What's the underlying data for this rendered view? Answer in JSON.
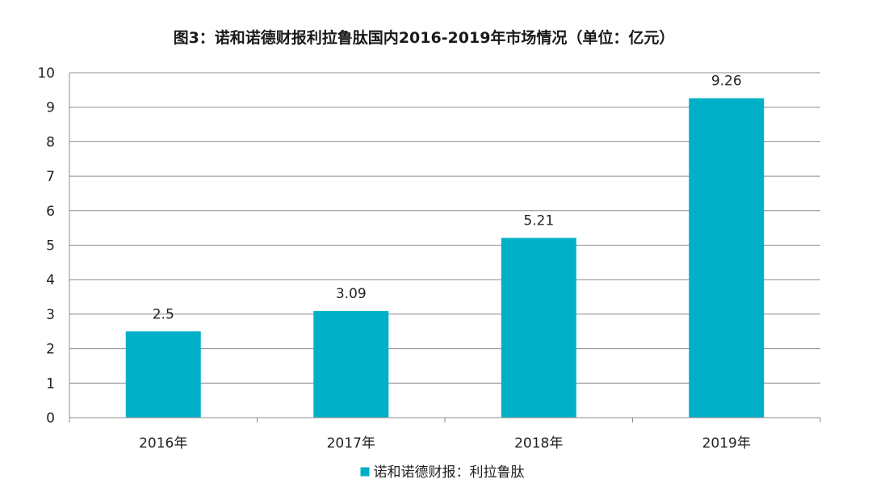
{
  "chart_data": {
    "type": "bar",
    "title": "图3：诺和诺德财报利拉鲁肽国内2016-2019年市场情况（单位：亿元）",
    "xlabel": "",
    "ylabel": "",
    "categories": [
      "2016年",
      "2017年",
      "2018年",
      "2019年"
    ],
    "series": [
      {
        "name": "诺和诺德财报：利拉鲁肽",
        "values": [
          2.5,
          3.09,
          5.21,
          9.26
        ],
        "labels": [
          "2.5",
          "3.09",
          "5.21",
          "9.26"
        ],
        "color": "#00B0C8"
      }
    ],
    "ylim": [
      0,
      10
    ],
    "yticks": [
      "0",
      "1",
      "2",
      "3",
      "4",
      "5",
      "6",
      "7",
      "8",
      "9",
      "10"
    ],
    "grid": true,
    "legend_position": "bottom"
  }
}
